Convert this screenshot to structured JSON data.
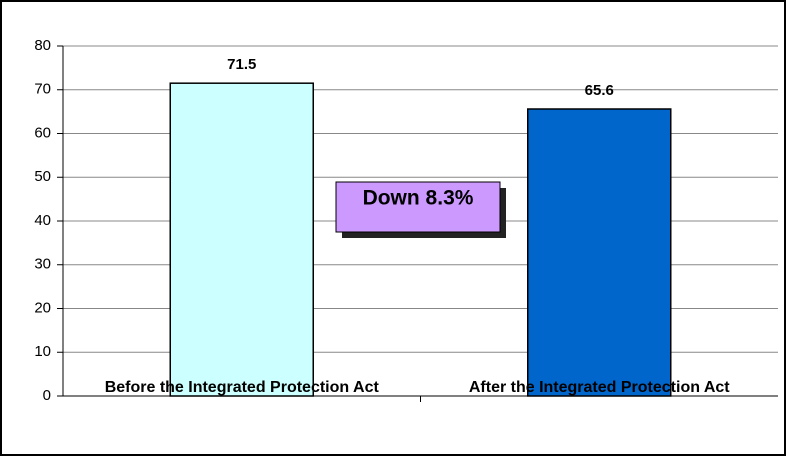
{
  "chart_data": {
    "type": "bar",
    "categories": [
      "Before the Integrated Protection Act",
      "After the Integrated Protection Act"
    ],
    "values": [
      71.5,
      65.6
    ],
    "colors": [
      "#ccffff",
      "#0066cc"
    ],
    "ylim": [
      0,
      80
    ],
    "yticks": [
      0,
      10,
      20,
      30,
      40,
      50,
      60,
      70,
      80
    ],
    "grid": true,
    "annotation": "Down 8.3%"
  }
}
